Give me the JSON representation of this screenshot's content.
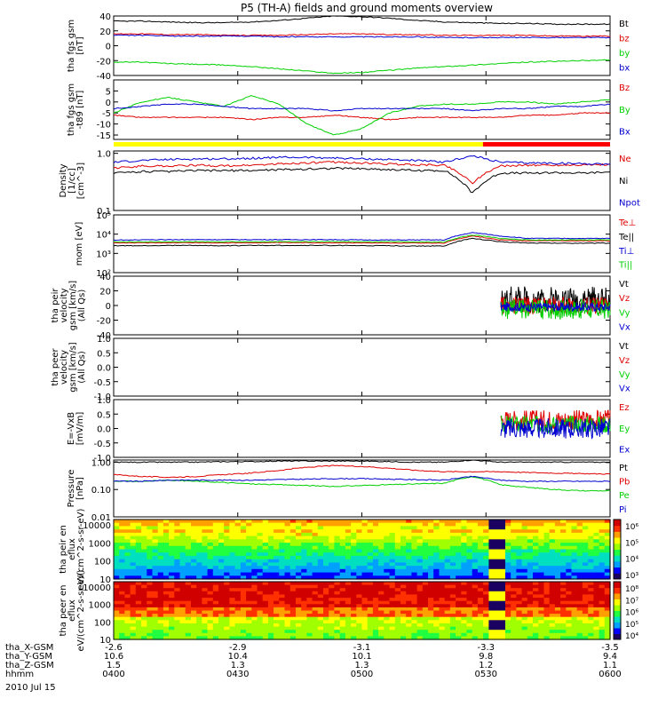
{
  "title": "P5 (TH-A) fields and ground moments overview",
  "date_label": "2010 Jul 15",
  "colors": {
    "black": "#000000",
    "red": "#e00000",
    "green": "#00d000",
    "blue": "#0000d0",
    "yellow": "#ffff00",
    "bar_red": "#ff0000"
  },
  "spectrogram_colormap": [
    "#1a0060",
    "#0000ff",
    "#00a0ff",
    "#00e0c0",
    "#20ff40",
    "#a0ff00",
    "#ffff00",
    "#ffa000",
    "#ff3000",
    "#d00000"
  ],
  "ephemeris": {
    "row_labels": [
      "tha_X-GSM",
      "tha_Y-GSM",
      "tha_Z-GSM",
      "hhmm"
    ],
    "columns": [
      {
        "x": "-2.6",
        "y": "10.6",
        "z": "1.5",
        "t": "0400"
      },
      {
        "x": "-2.9",
        "y": "10.4",
        "z": "1.3",
        "t": "0430"
      },
      {
        "x": "-3.1",
        "y": "10.1",
        "z": "1.3",
        "t": "0500"
      },
      {
        "x": "-3.3",
        "y": "9.8",
        "z": "1.2",
        "t": "0530"
      },
      {
        "x": "-3.5",
        "y": "9.4",
        "z": "1.1",
        "t": "0600"
      }
    ]
  },
  "chart_data": [
    {
      "type": "line",
      "ylabel": "tha fgs gsm [nT]",
      "ylim": [
        -40,
        40
      ],
      "ticks": [
        "40",
        "20",
        "0",
        "-20",
        "-40"
      ],
      "series": [
        {
          "name": "Bt",
          "color": "black",
          "values": [
            33,
            33,
            32,
            31,
            31,
            32,
            34,
            37,
            40,
            39,
            37,
            34,
            32,
            31,
            30,
            30,
            29,
            29,
            29
          ]
        },
        {
          "name": "bz",
          "color": "red",
          "values": [
            16,
            16,
            15,
            15,
            14,
            14,
            14,
            15,
            16,
            16,
            15,
            15,
            14,
            14,
            14,
            14,
            13,
            13,
            13
          ]
        },
        {
          "name": "by",
          "color": "green",
          "values": [
            -22,
            -22,
            -24,
            -25,
            -26,
            -28,
            -31,
            -34,
            -37,
            -36,
            -33,
            -30,
            -28,
            -26,
            -24,
            -22,
            -21,
            -20,
            -19
          ]
        },
        {
          "name": "bx",
          "color": "blue",
          "values": [
            14,
            14,
            13,
            13,
            13,
            13,
            12,
            12,
            12,
            12,
            12,
            12,
            11,
            11,
            11,
            11,
            11,
            11,
            11
          ]
        }
      ]
    },
    {
      "type": "line",
      "ylabel": "tha fgs gsm -t89 [nT]",
      "ylim": [
        -17,
        10
      ],
      "ticks": [
        "5",
        "0",
        "-5",
        "-10",
        "-15"
      ],
      "series": [
        {
          "name": "Bz",
          "color": "red",
          "values": [
            -6,
            -7,
            -7,
            -7,
            -7,
            -8,
            -7,
            -7,
            -6,
            -7,
            -8,
            -7,
            -7,
            -7,
            -7,
            -6,
            -6,
            -5,
            -5
          ]
        },
        {
          "name": "By",
          "color": "green",
          "values": [
            -5,
            0,
            2,
            0,
            -2,
            3,
            -1,
            -10,
            -15,
            -12,
            -5,
            -2,
            -1,
            -1,
            0,
            0,
            -1,
            0,
            1
          ]
        },
        {
          "name": "Bx",
          "color": "blue",
          "values": [
            -3,
            -2,
            -1,
            -1,
            -2,
            -3,
            -3,
            -3,
            -4,
            -3,
            -3,
            -3,
            -3,
            -4,
            -3,
            -3,
            -2,
            -2,
            -1
          ]
        }
      ]
    },
    {
      "type": "line",
      "ylabel": "Density [1/cc] [cm^-3]",
      "ylim": [
        0.1,
        1.1
      ],
      "log": true,
      "ticks": [
        "1.0",
        "0.1"
      ],
      "series": [
        {
          "name": "Ne",
          "color": "red",
          "values": [
            0.55,
            0.6,
            0.6,
            0.62,
            0.6,
            0.62,
            0.65,
            0.68,
            0.7,
            0.68,
            0.65,
            0.63,
            0.62,
            0.3,
            0.6,
            0.62,
            0.62,
            0.63,
            0.63
          ]
        },
        {
          "name": "Ni",
          "color": "black",
          "values": [
            0.45,
            0.48,
            0.48,
            0.5,
            0.5,
            0.5,
            0.52,
            0.53,
            0.55,
            0.54,
            0.52,
            0.5,
            0.5,
            0.2,
            0.45,
            0.45,
            0.46,
            0.45,
            0.47
          ]
        },
        {
          "name": "Npot",
          "color": "blue",
          "values": [
            0.7,
            0.75,
            0.78,
            0.8,
            0.8,
            0.82,
            0.85,
            0.85,
            0.83,
            0.8,
            0.78,
            0.75,
            0.7,
            0.9,
            0.7,
            0.68,
            0.67,
            0.66,
            0.65
          ]
        }
      ]
    },
    {
      "type": "line",
      "ylabel": "mom [eV]",
      "ylim": [
        100,
        100000
      ],
      "log": true,
      "ticks": [
        "10^5",
        "10^4",
        "10^3",
        "10^2"
      ],
      "series": [
        {
          "name": "Te⊥",
          "color": "red",
          "values": [
            3500,
            3500,
            3600,
            3600,
            3500,
            3600,
            3600,
            3600,
            3600,
            3500,
            3500,
            3500,
            3400,
            8000,
            5000,
            4500,
            4500,
            4500,
            4500
          ]
        },
        {
          "name": "Te||",
          "color": "black",
          "values": [
            2500,
            2500,
            2600,
            2600,
            2500,
            2600,
            2600,
            2600,
            2600,
            2500,
            2500,
            2400,
            2400,
            6000,
            4000,
            3500,
            3400,
            3400,
            3400
          ]
        },
        {
          "name": "Ti⊥",
          "color": "blue",
          "values": [
            5000,
            5000,
            5200,
            5200,
            5200,
            5200,
            5200,
            5200,
            5200,
            5000,
            5000,
            5000,
            5000,
            12000,
            8000,
            6000,
            6000,
            6000,
            6000
          ]
        },
        {
          "name": "Ti||",
          "color": "green",
          "values": [
            4000,
            4000,
            4000,
            4000,
            4000,
            4000,
            4100,
            4100,
            4100,
            4000,
            4000,
            3900,
            3900,
            9000,
            6000,
            5000,
            5000,
            5000,
            5000
          ]
        }
      ]
    },
    {
      "type": "line",
      "ylabel": "tha peir velocity gsm [km/s] (All Qs)",
      "ylim": [
        -40,
        40
      ],
      "ticks": [
        "40",
        "20",
        "0",
        "-20",
        "-40"
      ],
      "series": [
        {
          "name": "Vt",
          "color": "black"
        },
        {
          "name": "Vz",
          "color": "red"
        },
        {
          "name": "Vy",
          "color": "green"
        },
        {
          "name": "Vx",
          "color": "blue"
        }
      ]
    },
    {
      "type": "line",
      "ylabel": "tha peer velocity gsm [km/s] (All Qs)",
      "ylim": [
        -1,
        1
      ],
      "ticks": [
        "1.0",
        "0.5",
        "0.0",
        "-0.5",
        "-1.0"
      ],
      "series": [
        {
          "name": "Vt",
          "color": "black"
        },
        {
          "name": "Vz",
          "color": "red"
        },
        {
          "name": "Vy",
          "color": "green"
        },
        {
          "name": "Vx",
          "color": "blue"
        }
      ]
    },
    {
      "type": "line",
      "ylabel": "E=-VxB [mV/m]",
      "ylim": [
        -1,
        1
      ],
      "ticks": [
        "1.0",
        "0.5",
        "0.0",
        "-0.5",
        "-1.0"
      ],
      "series": [
        {
          "name": "Ez",
          "color": "red"
        },
        {
          "name": "Ey",
          "color": "green"
        },
        {
          "name": "Ex",
          "color": "blue"
        }
      ]
    },
    {
      "type": "line",
      "ylabel": "Pressure [nPa]",
      "ylim": [
        0.01,
        1.2
      ],
      "log": true,
      "ticks": [
        "1.00",
        "0.10",
        "0.01"
      ],
      "series": [
        {
          "name": "Pt",
          "color": "black",
          "values": [
            1.0,
            1.0,
            1.0,
            1.0,
            1.05,
            1.05,
            1.1,
            1.1,
            1.1,
            1.1,
            1.05,
            1.0,
            1.0,
            1.2,
            1.0,
            1.0,
            1.0,
            1.0,
            1.0
          ]
        },
        {
          "name": "Pb",
          "color": "red",
          "values": [
            0.35,
            0.3,
            0.28,
            0.3,
            0.35,
            0.4,
            0.5,
            0.65,
            0.75,
            0.7,
            0.6,
            0.5,
            0.45,
            0.45,
            0.45,
            0.42,
            0.4,
            0.38,
            0.37
          ]
        },
        {
          "name": "Pe",
          "color": "green",
          "values": [
            0.2,
            0.2,
            0.22,
            0.2,
            0.18,
            0.16,
            0.15,
            0.14,
            0.13,
            0.14,
            0.15,
            0.16,
            0.17,
            0.3,
            0.15,
            0.12,
            0.1,
            0.09,
            0.09
          ]
        },
        {
          "name": "Pi",
          "color": "blue",
          "values": [
            0.2,
            0.2,
            0.22,
            0.22,
            0.22,
            0.22,
            0.23,
            0.24,
            0.25,
            0.25,
            0.24,
            0.23,
            0.22,
            0.3,
            0.22,
            0.2,
            0.2,
            0.2,
            0.2
          ]
        }
      ]
    },
    {
      "type": "heatmap",
      "ylabel": "tha peir en eflux eV/(cm^2-s-sr-eV)",
      "ylim": [
        10,
        20000
      ],
      "log": true,
      "ticks": [
        "10000",
        "1000",
        "100",
        "10"
      ],
      "colorbar_ticks": [
        "10^6",
        "10^5",
        "10^4",
        "10^3"
      ]
    },
    {
      "type": "heatmap",
      "ylabel": "tha peer en eflux eV/(cm^2-s-sr-eV)",
      "ylim": [
        10,
        20000
      ],
      "log": true,
      "ticks": [
        "10000",
        "1000",
        "100",
        "10"
      ],
      "colorbar_ticks": [
        "10^8",
        "10^7",
        "10^6",
        "10^5",
        "10^4"
      ]
    }
  ]
}
